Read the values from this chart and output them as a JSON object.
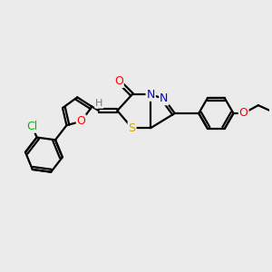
{
  "background_color": "#ebebeb",
  "atom_colors": {
    "C": "#000000",
    "N": "#0000ee",
    "O": "#ff0000",
    "S": "#ccaa00",
    "Cl": "#00bb00",
    "H": "#777777"
  },
  "bond_color": "#000000",
  "bond_width": 1.6,
  "fig_bg": "#ebebeb"
}
